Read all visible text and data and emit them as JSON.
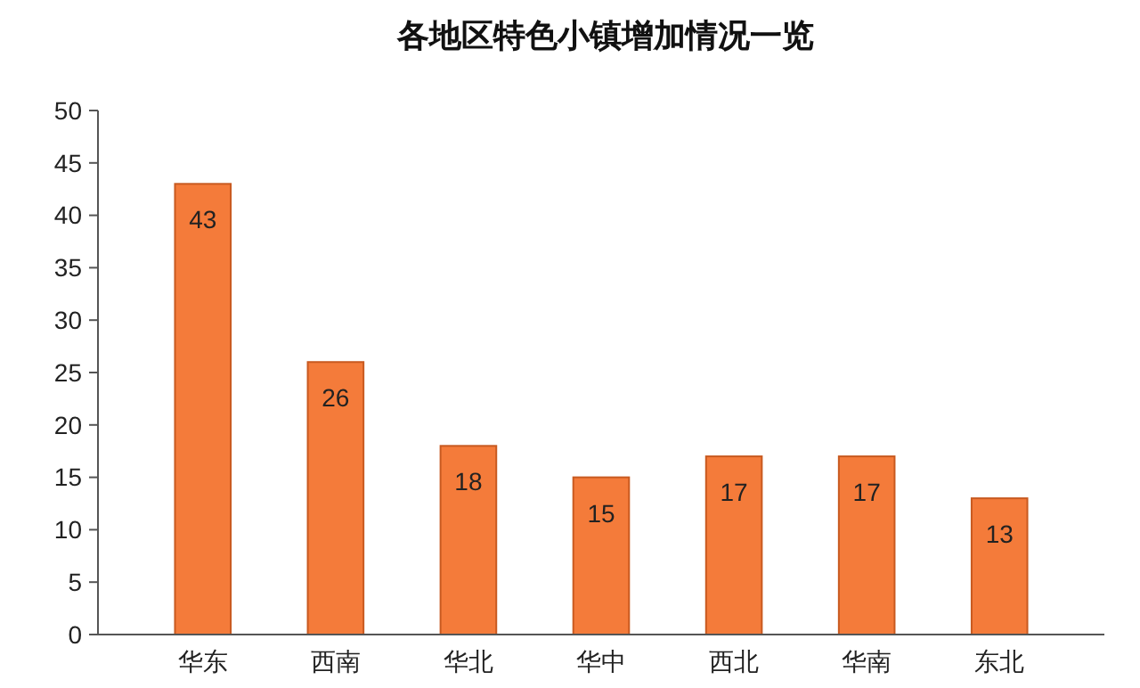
{
  "chart_data": {
    "type": "bar",
    "title": "各地区特色小镇增加情况一览",
    "categories": [
      "华东",
      "西南",
      "华北",
      "华中",
      "西北",
      "华南",
      "东北"
    ],
    "values": [
      43,
      26,
      18,
      15,
      17,
      17,
      13
    ],
    "color": "#f47b3a",
    "ylim": [
      0,
      50
    ],
    "yticks": [
      0,
      5,
      10,
      15,
      20,
      25,
      30,
      35,
      40,
      45,
      50
    ],
    "data_labels": true
  }
}
